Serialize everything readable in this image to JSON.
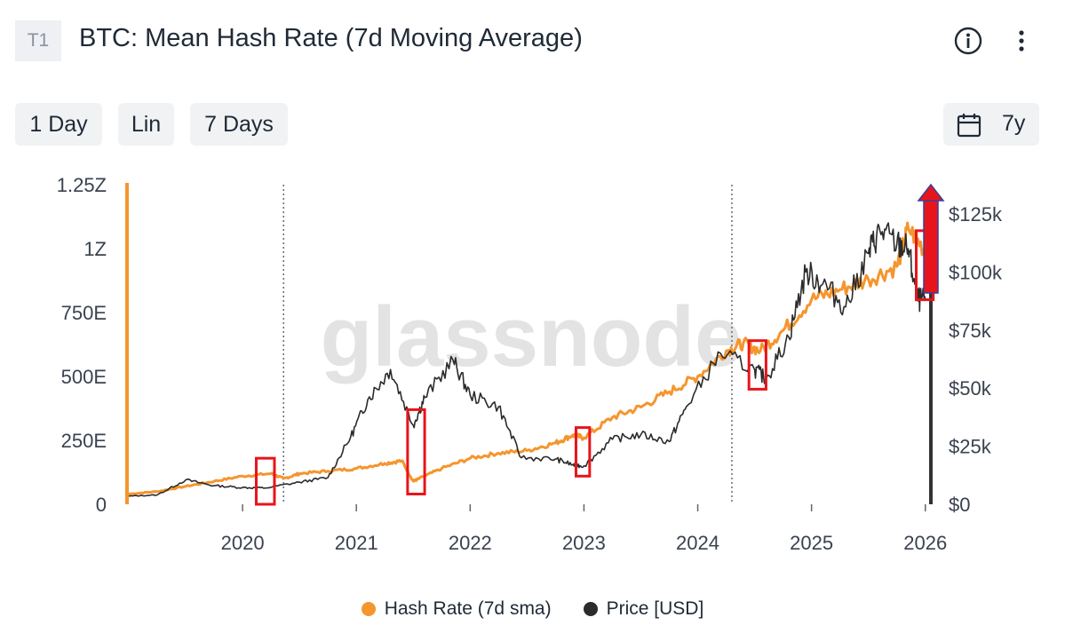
{
  "header": {
    "badge": "T1",
    "title": "BTC: Mean Hash Rate (7d Moving Average)"
  },
  "toolbar": {
    "resolution_label": "1 Day",
    "scale_label": "Lin",
    "sma_label": "7 Days",
    "range_label": "7y"
  },
  "colors": {
    "hash_rate": "#f5952e",
    "price": "#2b2b2b",
    "highlight_box": "#e8141b",
    "arrow": "#e8141b",
    "arrow_outline": "#3b3f9a"
  },
  "watermark": "glassnode",
  "chart_data": {
    "type": "line",
    "x_ticks": [
      "2020",
      "2021",
      "2022",
      "2023",
      "2024",
      "2025",
      "2026"
    ],
    "y_left_ticks": [
      "0",
      "250E",
      "500E",
      "750E",
      "1Z",
      "1.25Z"
    ],
    "y_right_ticks": [
      "$0",
      "$25k",
      "$50k",
      "$75k",
      "$100k",
      "$125k"
    ],
    "y_left_range": [
      0,
      1.25
    ],
    "y_left_unit": "ZH/s",
    "y_right_range": [
      0,
      125000
    ],
    "x_range": [
      2019.0,
      2026.08
    ],
    "grid": false,
    "legend_position": "bottom",
    "halving_markers": [
      2020.36,
      2024.3
    ],
    "series": [
      {
        "name": "Hash Rate (7d sma)",
        "axis": "left",
        "x": [
          2019.0,
          2019.25,
          2019.5,
          2019.75,
          2020.0,
          2020.25,
          2020.36,
          2020.5,
          2020.75,
          2021.0,
          2021.25,
          2021.4,
          2021.5,
          2021.55,
          2021.75,
          2022.0,
          2022.25,
          2022.5,
          2022.75,
          2022.9,
          2023.0,
          2023.25,
          2023.5,
          2023.75,
          2024.0,
          2024.25,
          2024.4,
          2024.55,
          2024.75,
          2025.0,
          2025.25,
          2025.5,
          2025.75,
          2025.85,
          2026.02
        ],
        "values": [
          0.04,
          0.05,
          0.07,
          0.09,
          0.11,
          0.12,
          0.1,
          0.12,
          0.13,
          0.14,
          0.16,
          0.17,
          0.09,
          0.1,
          0.14,
          0.18,
          0.2,
          0.21,
          0.24,
          0.27,
          0.26,
          0.34,
          0.38,
          0.44,
          0.5,
          0.6,
          0.63,
          0.6,
          0.68,
          0.8,
          0.84,
          0.88,
          0.93,
          1.08,
          0.98
        ]
      },
      {
        "name": "Price [USD]",
        "axis": "right",
        "x": [
          2019.0,
          2019.25,
          2019.5,
          2019.75,
          2020.0,
          2020.2,
          2020.5,
          2020.75,
          2020.95,
          2021.1,
          2021.3,
          2021.5,
          2021.6,
          2021.85,
          2022.0,
          2022.25,
          2022.45,
          2022.75,
          2022.9,
          2023.0,
          2023.25,
          2023.5,
          2023.75,
          2023.9,
          2024.2,
          2024.5,
          2024.6,
          2024.8,
          2024.95,
          2025.1,
          2025.3,
          2025.5,
          2025.6,
          2025.75,
          2025.85,
          2025.93,
          2026.0
        ],
        "values": [
          3500,
          4000,
          10500,
          8000,
          7200,
          7000,
          9500,
          11500,
          29000,
          45000,
          58000,
          34000,
          46000,
          62000,
          47000,
          42000,
          20000,
          19500,
          17000,
          16500,
          28000,
          30000,
          27000,
          42000,
          65000,
          58000,
          54000,
          72000,
          100000,
          95000,
          85000,
          108000,
          118000,
          112000,
          110000,
          88000,
          88000
        ]
      }
    ],
    "highlights": [
      {
        "x_start": 2020.12,
        "x_end": 2020.28,
        "y_low": 0.0,
        "y_high": 0.18
      },
      {
        "x_start": 2021.45,
        "x_end": 2021.6,
        "y_low": 0.04,
        "y_high": 0.37
      },
      {
        "x_start": 2022.93,
        "x_end": 2023.05,
        "y_low": 0.11,
        "y_high": 0.3
      },
      {
        "x_start": 2024.45,
        "x_end": 2024.6,
        "y_low": 0.45,
        "y_high": 0.64
      },
      {
        "x_start": 2025.92,
        "x_end": 2026.07,
        "y_low": 0.8,
        "y_high": 1.07
      }
    ]
  },
  "legend": {
    "hash_label": "Hash Rate (7d sma)",
    "price_label": "Price [USD]"
  }
}
